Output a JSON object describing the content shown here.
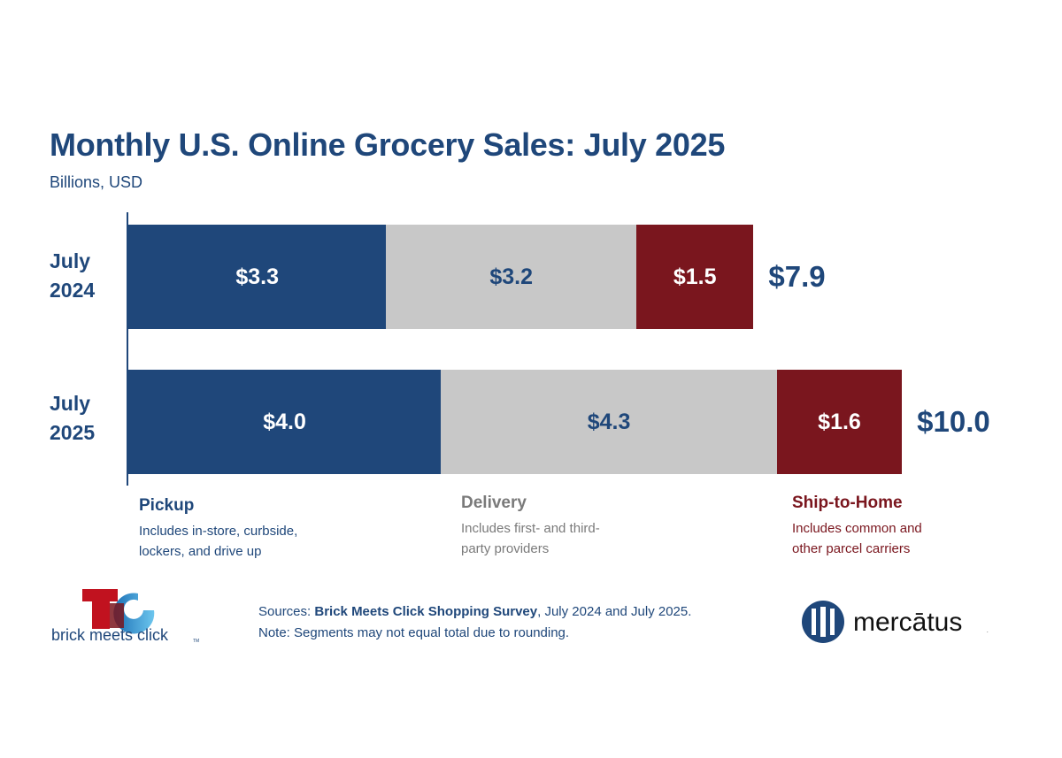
{
  "chart_data": {
    "type": "bar",
    "orientation": "horizontal",
    "stacked": true,
    "title": "Monthly U.S. Online Grocery Sales: July 2025",
    "subtitle": "Billions, USD",
    "categories": [
      "July 2024",
      "July 2025"
    ],
    "category_lines": [
      [
        "July",
        "2024"
      ],
      [
        "July",
        "2025"
      ]
    ],
    "series": [
      {
        "name": "Pickup",
        "values": [
          3.3,
          4.0
        ],
        "labels": [
          "$3.3",
          "$4.0"
        ],
        "color": "#1f477a",
        "label_color": "#ffffff",
        "description": "Includes in-store, curbside, lockers, and drive up"
      },
      {
        "name": "Delivery",
        "values": [
          3.2,
          4.3
        ],
        "labels": [
          "$3.2",
          "$4.3"
        ],
        "color": "#c8c8c8",
        "label_color": "#1f477a",
        "legend_color": "#7a7a7a",
        "description": "Includes first- and third-party providers"
      },
      {
        "name": "Ship-to-Home",
        "values": [
          1.5,
          1.6
        ],
        "labels": [
          "$1.5",
          "$1.6"
        ],
        "color": "#7a161e",
        "label_color": "#ffffff",
        "description": "Includes common and other parcel carriers"
      }
    ],
    "totals": [
      7.9,
      10.0
    ],
    "total_labels": [
      "$7.9",
      "$10.0"
    ],
    "grid": false,
    "legend_placement": "bottom"
  },
  "footer": {
    "sources_prefix": "Sources: ",
    "sources_bold": "Brick Meets Click Shopping Survey",
    "sources_suffix": ", July 2024 and July 2025.",
    "note": "Note: Segments may not equal total due to rounding."
  },
  "logos": {
    "left": {
      "text": "brick meets click",
      "tm": "TM"
    },
    "right": {
      "text": "mercātus",
      "tm": "TM"
    }
  }
}
